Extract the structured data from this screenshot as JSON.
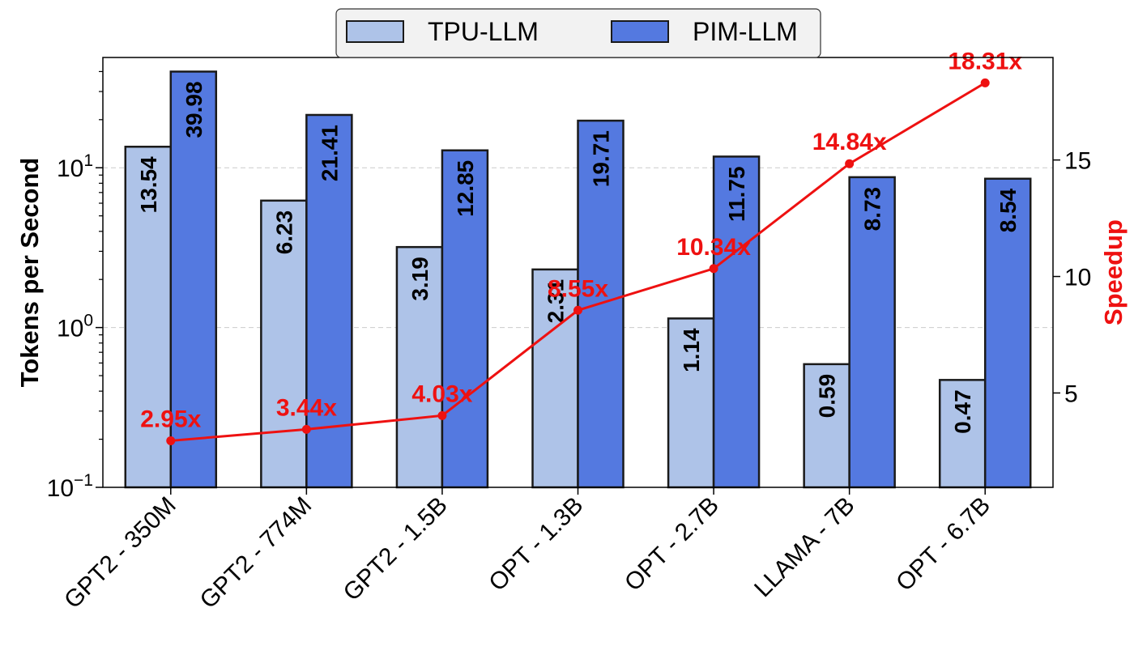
{
  "chart_data": {
    "type": "bar",
    "categories": [
      "GPT2 - 350M",
      "GPT2 - 774M",
      "GPT2 - 1.5B",
      "OPT - 1.3B",
      "OPT - 2.7B",
      "LLAMA - 7B",
      "OPT - 6.7B"
    ],
    "series": [
      {
        "name": "TPU-LLM",
        "values": [
          13.54,
          6.23,
          3.19,
          2.31,
          1.14,
          0.59,
          0.47
        ],
        "color": "#aec3e8",
        "value_labels": [
          "13.54",
          "6.23",
          "3.19",
          "2.31",
          "1.14",
          "0.59",
          "0.47"
        ]
      },
      {
        "name": "PIM-LLM",
        "values": [
          39.98,
          21.41,
          12.85,
          19.71,
          11.75,
          8.73,
          8.54
        ],
        "color": "#5479e0",
        "value_labels": [
          "39.98",
          "21.41",
          "12.85",
          "19.71",
          "11.75",
          "8.73",
          "8.54"
        ]
      }
    ],
    "speedup": {
      "type": "line",
      "color": "#ee1111",
      "values": [
        2.95,
        3.44,
        4.03,
        8.55,
        10.34,
        14.84,
        18.31
      ],
      "labels": [
        "2.95x",
        "3.44x",
        "4.03x",
        "8.55x",
        "10.34x",
        "14.84x",
        "18.31x"
      ],
      "ylabel": "Speedup",
      "ylim": [
        0.95,
        19.4
      ],
      "ticks": [
        5,
        10,
        15
      ],
      "tick_labels": [
        "5",
        "10",
        "15"
      ]
    },
    "ylabel": "Tokens per Second",
    "yscale": "log",
    "ylim": [
      0.1,
      49
    ],
    "yticks": [
      0.1,
      1,
      10
    ],
    "ytick_labels": [
      {
        "base": "10",
        "exp": "−1"
      },
      {
        "base": "10",
        "exp": "0"
      },
      {
        "base": "10",
        "exp": "1"
      }
    ],
    "grid": "horizontal-dashed",
    "legend_placement": "top-center"
  }
}
